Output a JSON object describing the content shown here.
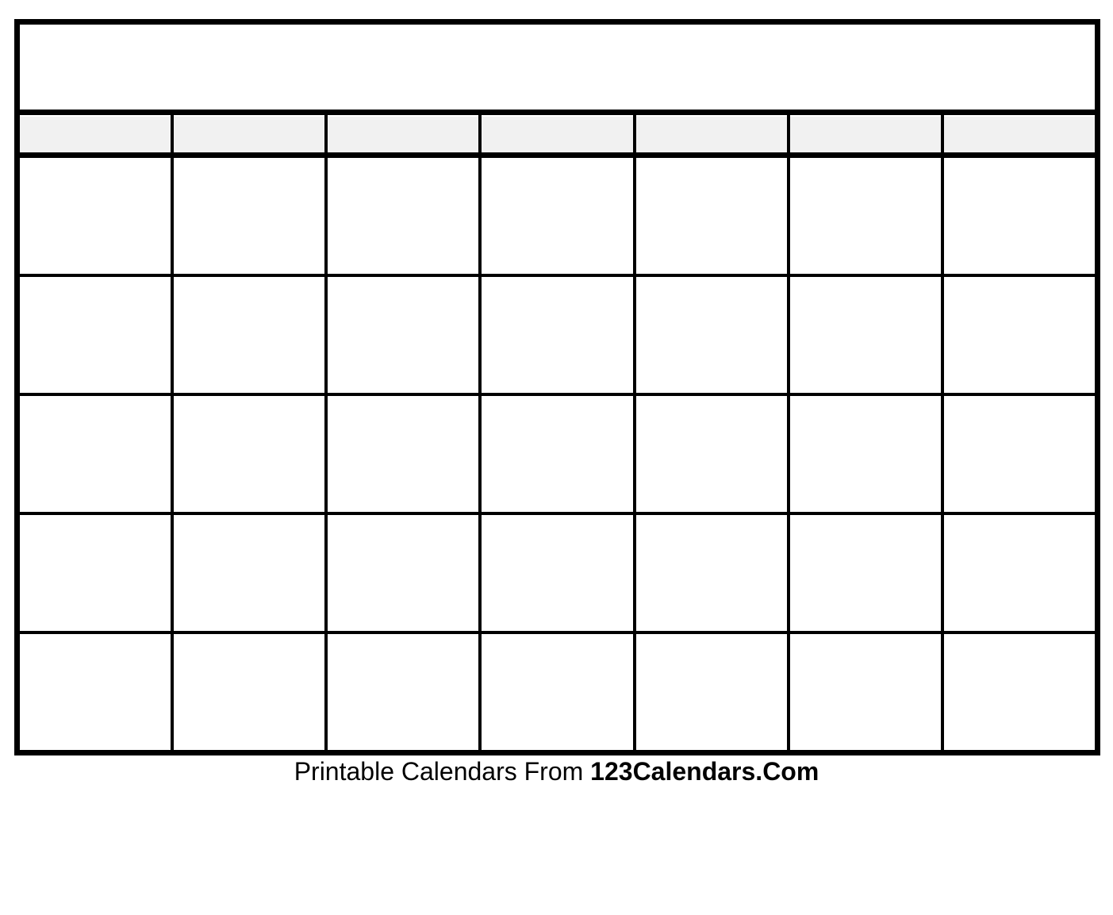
{
  "calendar": {
    "title": "",
    "columns": 7,
    "rows": 5,
    "weekdays": [
      "",
      "",
      "",
      "",
      "",
      "",
      ""
    ],
    "day_cells": [
      "",
      "",
      "",
      "",
      "",
      "",
      "",
      "",
      "",
      "",
      "",
      "",
      "",
      "",
      "",
      "",
      "",
      "",
      "",
      "",
      "",
      "",
      "",
      "",
      "",
      "",
      "",
      "",
      "",
      "",
      "",
      "",
      "",
      "",
      ""
    ],
    "colors": {
      "border": "#000000",
      "weekday_header_fill": "#f1f1f1",
      "cell_fill": "#ffffff",
      "page_background": "#ffffff"
    }
  },
  "footer": {
    "prefix": "Printable Calendars From",
    "brand": "123Calendars.Com"
  }
}
